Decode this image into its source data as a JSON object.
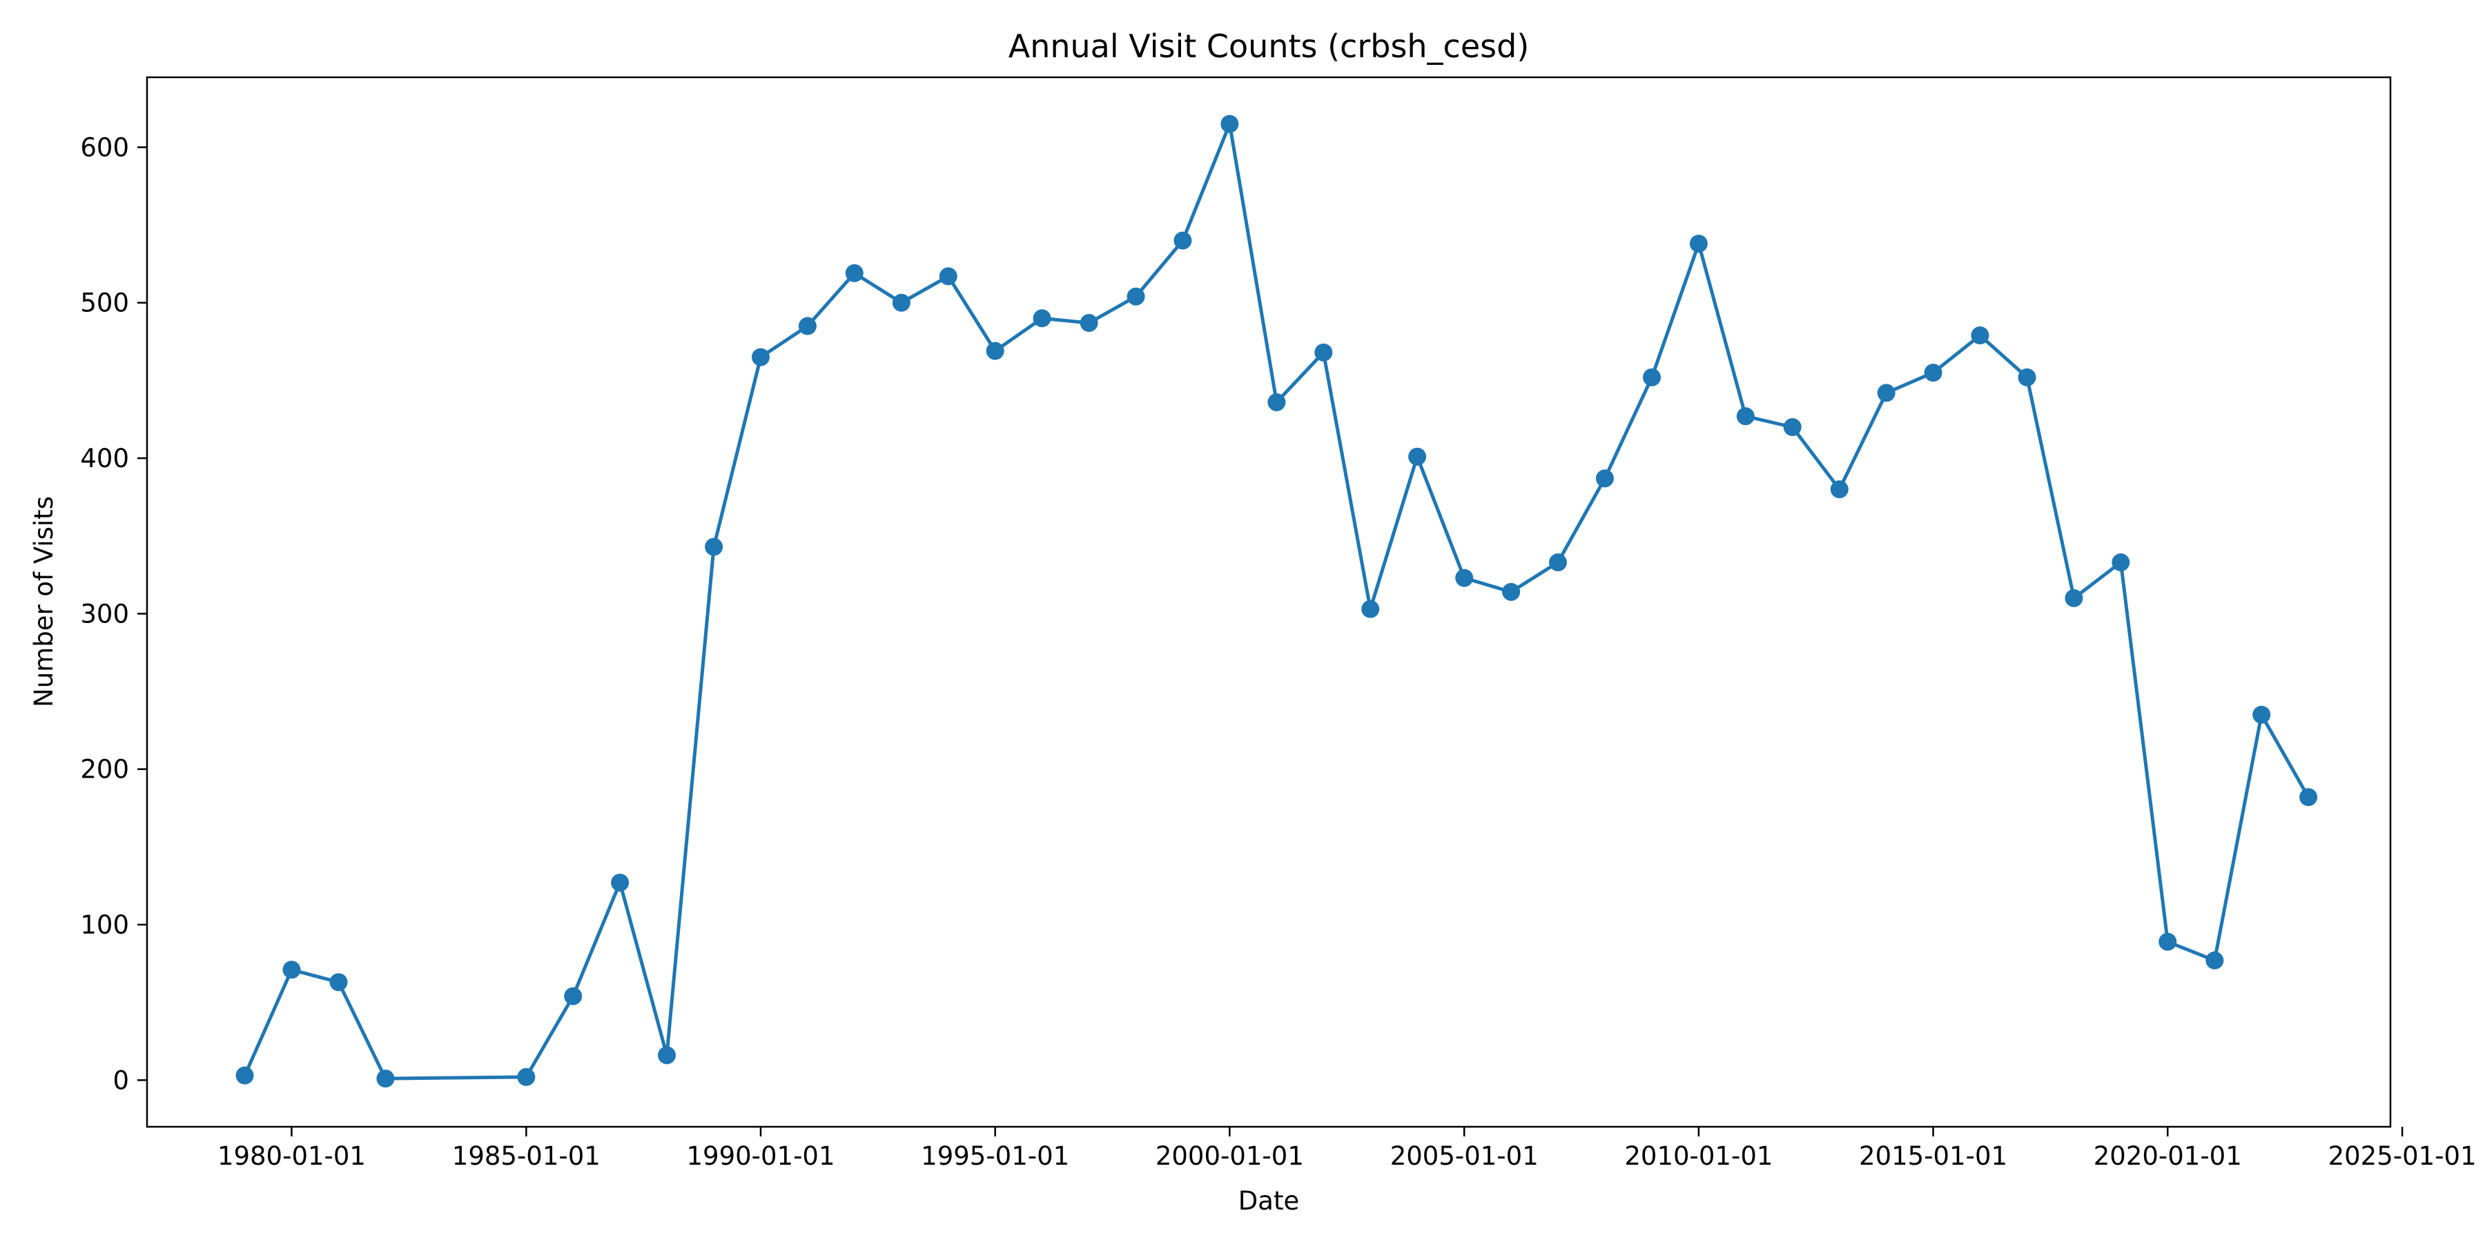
{
  "chart_data": {
    "type": "line",
    "title": "Annual Visit Counts (crbsh_cesd)",
    "xlabel": "Date",
    "ylabel": "Number of Visits",
    "grid": false,
    "legend": "none",
    "color": "#1f77b4",
    "x_ticks": [
      "1980-01-01",
      "1985-01-01",
      "1990-01-01",
      "1995-01-01",
      "2000-01-01",
      "2005-01-01",
      "2010-01-01",
      "2015-01-01",
      "2020-01-01",
      "2025-01-01"
    ],
    "y_ticks": [
      0,
      100,
      200,
      300,
      400,
      500,
      600
    ],
    "xlim": [
      "1976-12-01",
      "2024-10-01"
    ],
    "ylim": [
      -30,
      645
    ],
    "x": [
      "1979-01-01",
      "1980-01-01",
      "1981-01-01",
      "1982-01-01",
      "1985-01-01",
      "1986-01-01",
      "1987-01-01",
      "1988-01-01",
      "1989-01-01",
      "1990-01-01",
      "1991-01-01",
      "1992-01-01",
      "1993-01-01",
      "1994-01-01",
      "1995-01-01",
      "1996-01-01",
      "1997-01-01",
      "1998-01-01",
      "1999-01-01",
      "2000-01-01",
      "2001-01-01",
      "2002-01-01",
      "2003-01-01",
      "2004-01-01",
      "2005-01-01",
      "2006-01-01",
      "2007-01-01",
      "2008-01-01",
      "2009-01-01",
      "2010-01-01",
      "2011-01-01",
      "2012-01-01",
      "2013-01-01",
      "2014-01-01",
      "2015-01-01",
      "2016-01-01",
      "2017-01-01",
      "2018-01-01",
      "2019-01-01",
      "2020-01-01",
      "2021-01-01",
      "2022-01-01",
      "2023-01-01"
    ],
    "y": [
      3,
      71,
      63,
      1,
      2,
      54,
      127,
      16,
      343,
      465,
      485,
      519,
      500,
      517,
      469,
      490,
      487,
      504,
      540,
      615,
      436,
      468,
      303,
      401,
      323,
      314,
      333,
      387,
      452,
      538,
      427,
      420,
      380,
      442,
      455,
      479,
      452,
      310,
      333,
      89,
      77,
      235,
      182
    ]
  }
}
